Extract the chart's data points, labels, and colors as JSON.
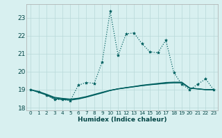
{
  "xlabel": "Humidex (Indice chaleur)",
  "bg_color": "#d8f0f0",
  "grid_color": "#b8d8d8",
  "line_color": "#006060",
  "x": [
    0,
    1,
    2,
    3,
    4,
    5,
    6,
    7,
    8,
    9,
    10,
    11,
    12,
    13,
    14,
    15,
    16,
    17,
    18,
    19,
    20,
    21,
    22,
    23
  ],
  "y_main": [
    19.0,
    18.9,
    18.7,
    18.45,
    18.45,
    18.4,
    19.25,
    19.4,
    19.35,
    20.55,
    23.35,
    20.9,
    22.1,
    22.15,
    21.55,
    21.1,
    21.05,
    21.75,
    19.95,
    19.3,
    19.0,
    19.3,
    19.6,
    19.0
  ],
  "y_line2": [
    19.0,
    18.85,
    18.7,
    18.5,
    18.45,
    18.42,
    18.48,
    18.58,
    18.7,
    18.82,
    18.95,
    19.05,
    19.12,
    19.18,
    19.25,
    19.3,
    19.35,
    19.4,
    19.42,
    19.42,
    19.1,
    19.05,
    19.0,
    19.0
  ],
  "y_line3": [
    19.0,
    18.88,
    18.72,
    18.55,
    18.5,
    18.46,
    18.5,
    18.6,
    18.72,
    18.84,
    18.96,
    19.04,
    19.1,
    19.16,
    19.22,
    19.27,
    19.31,
    19.35,
    19.38,
    19.38,
    19.08,
    19.04,
    19.0,
    19.0
  ],
  "y_line4": [
    19.0,
    18.9,
    18.75,
    18.58,
    18.52,
    18.48,
    18.53,
    18.62,
    18.74,
    18.86,
    18.97,
    19.05,
    19.11,
    19.17,
    19.23,
    19.28,
    19.32,
    19.36,
    19.39,
    19.39,
    19.09,
    19.05,
    19.01,
    19.0
  ],
  "ylim": [
    17.85,
    23.75
  ],
  "yticks": [
    18,
    19,
    20,
    21,
    22,
    23
  ],
  "xticks": [
    0,
    1,
    2,
    3,
    4,
    5,
    6,
    7,
    8,
    9,
    10,
    11,
    12,
    13,
    14,
    15,
    16,
    17,
    18,
    19,
    20,
    21,
    22,
    23
  ],
  "xlabel_fontsize": 6.5,
  "ytick_fontsize": 6.5,
  "xtick_fontsize": 5.2
}
